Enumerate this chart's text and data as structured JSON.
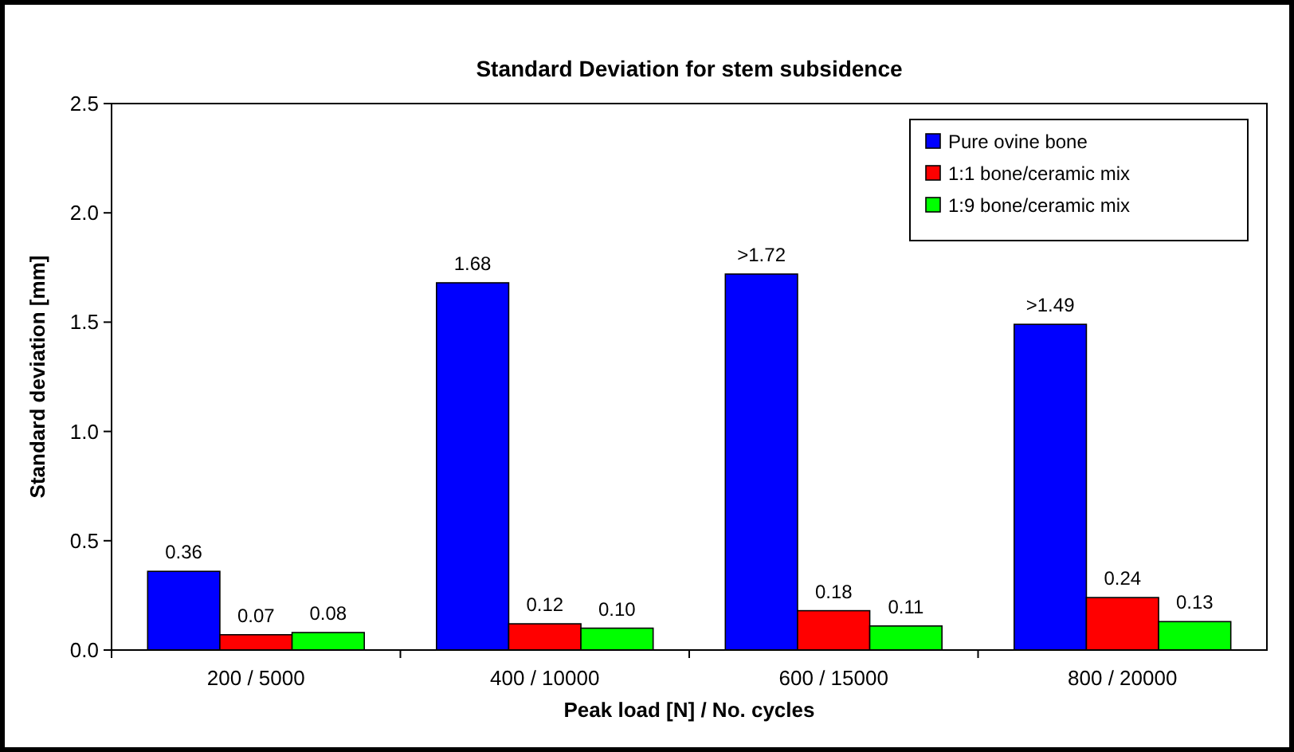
{
  "chart_data": {
    "type": "bar",
    "title": "Standard Deviation for stem subsidence",
    "xlabel": "Peak load [N] / No. cycles",
    "ylabel": "Standard deviation [mm]",
    "categories": [
      "200 / 5000",
      "400 / 10000",
      "600 / 15000",
      "800 / 20000"
    ],
    "series": [
      {
        "name": "Pure ovine bone",
        "color": "#0000ff",
        "values": [
          0.36,
          1.68,
          1.72,
          1.49
        ],
        "value_labels": [
          "0.36",
          "1.68",
          ">1.72",
          ">1.49"
        ]
      },
      {
        "name": "1:1 bone/ceramic mix",
        "color": "#ff0000",
        "values": [
          0.07,
          0.12,
          0.18,
          0.24
        ],
        "value_labels": [
          "0.07",
          "0.12",
          "0.18",
          "0.24"
        ]
      },
      {
        "name": "1:9 bone/ceramic mix",
        "color": "#00ff00",
        "values": [
          0.08,
          0.1,
          0.11,
          0.13
        ],
        "value_labels": [
          "0.08",
          "0.10",
          "0.11",
          "0.13"
        ]
      }
    ],
    "ylim": [
      0,
      2.5
    ],
    "yticks": [
      {
        "value": 0,
        "label": "0.0"
      },
      {
        "value": 0.5,
        "label": "0.5"
      },
      {
        "value": 1,
        "label": "1.0"
      },
      {
        "value": 1.5,
        "label": "1.5"
      },
      {
        "value": 2,
        "label": "2.0"
      },
      {
        "value": 2.5,
        "label": "2.5"
      }
    ],
    "grid": false,
    "legend": "top right"
  }
}
